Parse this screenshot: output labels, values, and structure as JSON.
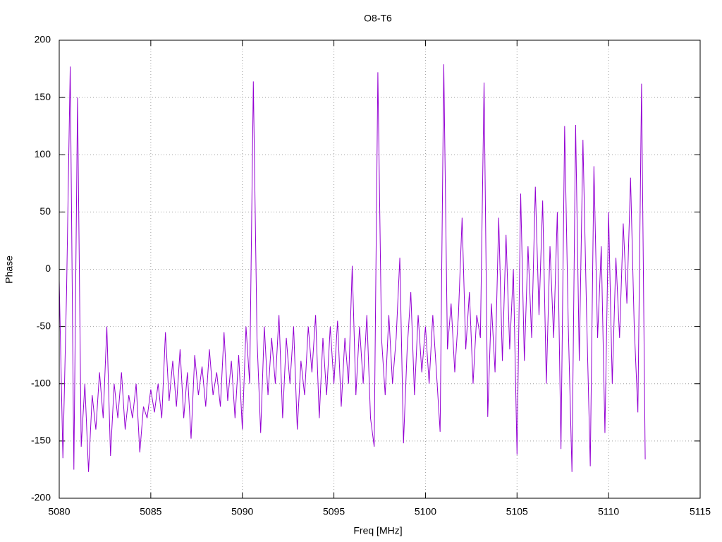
{
  "chart_data": {
    "type": "line",
    "title": "O8-T6",
    "x_label": "Freq [MHz]",
    "y_label": "Phase",
    "x": [
      5080.0,
      5080.2,
      5080.4,
      5080.6,
      5080.8,
      5081.0,
      5081.2,
      5081.4,
      5081.6,
      5081.8,
      5082.0,
      5082.2,
      5082.4,
      5082.6,
      5082.8,
      5083.0,
      5083.2,
      5083.4,
      5083.6,
      5083.8,
      5084.0,
      5084.2,
      5084.4,
      5084.6,
      5084.8,
      5085.0,
      5085.2,
      5085.4,
      5085.6,
      5085.8,
      5086.0,
      5086.2,
      5086.4,
      5086.6,
      5086.8,
      5087.0,
      5087.2,
      5087.4,
      5087.6,
      5087.8,
      5088.0,
      5088.2,
      5088.4,
      5088.6,
      5088.8,
      5089.0,
      5089.2,
      5089.4,
      5089.6,
      5089.8,
      5090.0,
      5090.2,
      5090.4,
      5090.6,
      5090.8,
      5091.0,
      5091.2,
      5091.4,
      5091.6,
      5091.8,
      5092.0,
      5092.2,
      5092.4,
      5092.6,
      5092.8,
      5093.0,
      5093.2,
      5093.4,
      5093.6,
      5093.8,
      5094.0,
      5094.2,
      5094.4,
      5094.6,
      5094.8,
      5095.0,
      5095.2,
      5095.4,
      5095.6,
      5095.8,
      5096.0,
      5096.2,
      5096.4,
      5096.6,
      5096.8,
      5097.0,
      5097.2,
      5097.4,
      5097.6,
      5097.8,
      5098.0,
      5098.2,
      5098.4,
      5098.6,
      5098.8,
      5099.0,
      5099.2,
      5099.4,
      5099.6,
      5099.8,
      5100.0,
      5100.2,
      5100.4,
      5100.6,
      5100.8,
      5101.0,
      5101.2,
      5101.4,
      5101.6,
      5101.8,
      5102.0,
      5102.2,
      5102.4,
      5102.6,
      5102.8,
      5103.0,
      5103.2,
      5103.4,
      5103.6,
      5103.8,
      5104.0,
      5104.2,
      5104.4,
      5104.6,
      5104.8,
      5105.0,
      5105.2,
      5105.4,
      5105.6,
      5105.8,
      5106.0,
      5106.2,
      5106.4,
      5106.6,
      5106.8,
      5107.0,
      5107.2,
      5107.4,
      5107.6,
      5107.8,
      5108.0,
      5108.2,
      5108.4,
      5108.6,
      5108.8,
      5109.0,
      5109.2,
      5109.4,
      5109.6,
      5109.8,
      5110.0,
      5110.2,
      5110.4,
      5110.6,
      5110.8,
      5111.0,
      5111.2,
      5111.4,
      5111.6,
      5111.8,
      5112.0
    ],
    "series": [
      {
        "name": "O8-T6",
        "color": "#9400d3",
        "values": [
          -10,
          -165,
          -20,
          177,
          -175,
          150,
          -155,
          -100,
          -177,
          -110,
          -140,
          -90,
          -130,
          -50,
          -163,
          -100,
          -130,
          -90,
          -140,
          -110,
          -130,
          -100,
          -160,
          -120,
          -130,
          -105,
          -125,
          -100,
          -130,
          -55,
          -115,
          -80,
          -120,
          -70,
          -130,
          -90,
          -148,
          -75,
          -110,
          -85,
          -120,
          -70,
          -110,
          -90,
          -120,
          -55,
          -115,
          -80,
          -130,
          -75,
          -140,
          -50,
          -100,
          164,
          -60,
          -143,
          -50,
          -110,
          -60,
          -100,
          -40,
          -130,
          -60,
          -100,
          -50,
          -140,
          -80,
          -110,
          -50,
          -90,
          -40,
          -130,
          -60,
          -110,
          -50,
          -100,
          -45,
          -120,
          -60,
          -100,
          3,
          -110,
          -50,
          -100,
          -40,
          -130,
          -155,
          172,
          -60,
          -110,
          -40,
          -100,
          -60,
          10,
          -152,
          -70,
          -20,
          -110,
          -40,
          -90,
          -50,
          -100,
          -40,
          -90,
          -142,
          179,
          -70,
          -30,
          -90,
          -40,
          45,
          -70,
          -20,
          -100,
          -40,
          -60,
          163,
          -129,
          -30,
          -90,
          45,
          -80,
          30,
          -70,
          0,
          -162,
          66,
          -80,
          20,
          -60,
          72,
          -40,
          60,
          -100,
          20,
          -60,
          50,
          -157,
          125,
          -50,
          -177,
          126,
          -80,
          113,
          -40,
          -172,
          90,
          -60,
          20,
          -143,
          50,
          -100,
          10,
          -60,
          40,
          -30,
          80,
          -50,
          -125,
          162,
          -166
        ]
      }
    ],
    "xlim": [
      5080,
      5115
    ],
    "xticks": [
      5080,
      5085,
      5090,
      5095,
      5100,
      5105,
      5110,
      5115
    ],
    "ylim": [
      -200,
      200
    ],
    "yticks": [
      -200,
      -150,
      -100,
      -50,
      0,
      50,
      100,
      150,
      200
    ],
    "grid": true
  }
}
